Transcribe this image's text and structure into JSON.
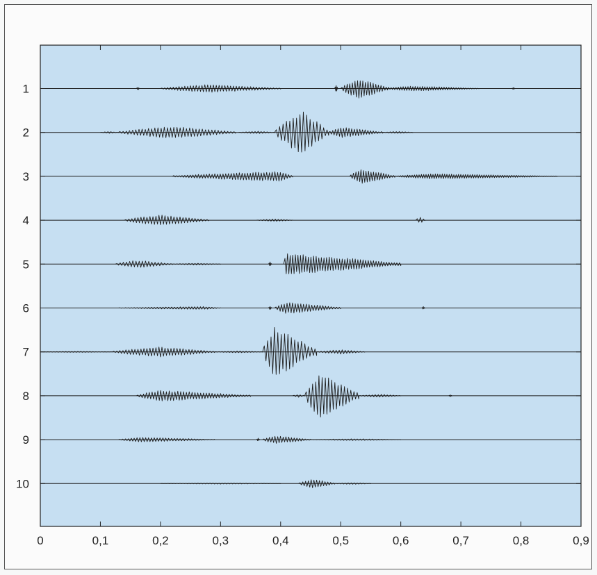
{
  "chart_data": {
    "type": "line",
    "title": "",
    "xlabel": "",
    "ylabel": "",
    "xlim": [
      0,
      0.9
    ],
    "ylim": [
      0,
      11
    ],
    "grid": false,
    "legend": "none",
    "x_ticks": [
      {
        "value": 0,
        "label": "0"
      },
      {
        "value": 0.1,
        "label": "0,1"
      },
      {
        "value": 0.2,
        "label": "0,2"
      },
      {
        "value": 0.3,
        "label": "0,3"
      },
      {
        "value": 0.4,
        "label": "0,4"
      },
      {
        "value": 0.5,
        "label": "0,5"
      },
      {
        "value": 0.6,
        "label": "0,6"
      },
      {
        "value": 0.7,
        "label": "0,7"
      },
      {
        "value": 0.8,
        "label": "0,8"
      },
      {
        "value": 0.9,
        "label": "0,9"
      }
    ],
    "colors": {
      "plot_background": "#c6dff2",
      "waveform": "#1e1e1e",
      "axis": "#222222"
    },
    "series": [
      {
        "label": "1",
        "bursts": [
          {
            "start": 0.16,
            "end": 0.165,
            "amp": 0.08
          },
          {
            "start": 0.2,
            "end": 0.4,
            "amp": 0.22,
            "peak": 0.28,
            "freq": 210
          },
          {
            "start": 0.49,
            "end": 0.495,
            "amp": 0.2
          },
          {
            "start": 0.5,
            "end": 0.58,
            "amp": 0.55,
            "peak": 0.53,
            "freq": 230
          },
          {
            "start": 0.57,
            "end": 0.73,
            "amp": 0.14,
            "peak": 0.62,
            "freq": 250
          },
          {
            "start": 0.785,
            "end": 0.79,
            "amp": 0.06
          }
        ]
      },
      {
        "label": "2",
        "bursts": [
          {
            "start": 0.1,
            "end": 0.13,
            "amp": 0.05
          },
          {
            "start": 0.13,
            "end": 0.325,
            "amp": 0.34,
            "peak": 0.22,
            "freq": 190
          },
          {
            "start": 0.33,
            "end": 0.39,
            "amp": 0.07
          },
          {
            "start": 0.39,
            "end": 0.48,
            "amp": 1.2,
            "peak": 0.435,
            "freq": 180
          },
          {
            "start": 0.48,
            "end": 0.57,
            "amp": 0.3,
            "peak": 0.5,
            "freq": 220
          },
          {
            "start": 0.57,
            "end": 0.62,
            "amp": 0.06
          }
        ]
      },
      {
        "label": "3",
        "bursts": [
          {
            "start": 0.22,
            "end": 0.42,
            "amp": 0.28,
            "peak": 0.4,
            "freq": 220
          },
          {
            "start": 0.515,
            "end": 0.59,
            "amp": 0.4,
            "peak": 0.535,
            "freq": 240
          },
          {
            "start": 0.59,
            "end": 0.86,
            "amp": 0.14,
            "peak": 0.65,
            "freq": 260
          }
        ]
      },
      {
        "label": "4",
        "bursts": [
          {
            "start": 0.14,
            "end": 0.28,
            "amp": 0.3,
            "peak": 0.2,
            "freq": 200
          },
          {
            "start": 0.36,
            "end": 0.42,
            "amp": 0.07,
            "peak": 0.39,
            "freq": 210
          },
          {
            "start": 0.625,
            "end": 0.64,
            "amp": 0.18,
            "peak": 0.632,
            "freq": 120
          }
        ]
      },
      {
        "label": "5",
        "bursts": [
          {
            "start": 0.125,
            "end": 0.22,
            "amp": 0.22,
            "peak": 0.16,
            "freq": 190
          },
          {
            "start": 0.22,
            "end": 0.3,
            "amp": 0.05
          },
          {
            "start": 0.38,
            "end": 0.385,
            "amp": 0.12
          },
          {
            "start": 0.405,
            "end": 0.6,
            "amp": 0.6,
            "peak": 0.41,
            "freq": 230
          }
        ]
      },
      {
        "label": "6",
        "bursts": [
          {
            "start": 0.13,
            "end": 0.3,
            "amp": 0.08,
            "peak": 0.27,
            "freq": 210
          },
          {
            "start": 0.38,
            "end": 0.385,
            "amp": 0.1
          },
          {
            "start": 0.39,
            "end": 0.5,
            "amp": 0.32,
            "peak": 0.41,
            "freq": 220
          },
          {
            "start": 0.635,
            "end": 0.64,
            "amp": 0.08
          }
        ]
      },
      {
        "label": "7",
        "bursts": [
          {
            "start": 0.0,
            "end": 0.12,
            "amp": 0.03
          },
          {
            "start": 0.12,
            "end": 0.29,
            "amp": 0.28,
            "peak": 0.2,
            "freq": 200
          },
          {
            "start": 0.29,
            "end": 0.37,
            "amp": 0.05
          },
          {
            "start": 0.37,
            "end": 0.46,
            "amp": 1.4,
            "peak": 0.39,
            "freq": 180
          },
          {
            "start": 0.46,
            "end": 0.54,
            "amp": 0.12
          }
        ]
      },
      {
        "label": "8",
        "bursts": [
          {
            "start": 0.16,
            "end": 0.35,
            "amp": 0.3,
            "peak": 0.2,
            "freq": 210
          },
          {
            "start": 0.42,
            "end": 0.44,
            "amp": 0.08
          },
          {
            "start": 0.44,
            "end": 0.53,
            "amp": 1.25,
            "peak": 0.465,
            "freq": 190
          },
          {
            "start": 0.53,
            "end": 0.6,
            "amp": 0.08
          },
          {
            "start": 0.68,
            "end": 0.685,
            "amp": 0.06
          }
        ]
      },
      {
        "label": "9",
        "bursts": [
          {
            "start": 0.13,
            "end": 0.29,
            "amp": 0.13,
            "peak": 0.17,
            "freq": 210
          },
          {
            "start": 0.36,
            "end": 0.365,
            "amp": 0.08
          },
          {
            "start": 0.37,
            "end": 0.45,
            "amp": 0.22,
            "peak": 0.39,
            "freq": 220
          },
          {
            "start": 0.45,
            "end": 0.6,
            "amp": 0.05
          }
        ]
      },
      {
        "label": "10",
        "bursts": [
          {
            "start": 0.2,
            "end": 0.4,
            "amp": 0.03
          },
          {
            "start": 0.43,
            "end": 0.49,
            "amp": 0.25,
            "peak": 0.455,
            "freq": 220
          },
          {
            "start": 0.49,
            "end": 0.55,
            "amp": 0.05
          }
        ]
      }
    ]
  }
}
